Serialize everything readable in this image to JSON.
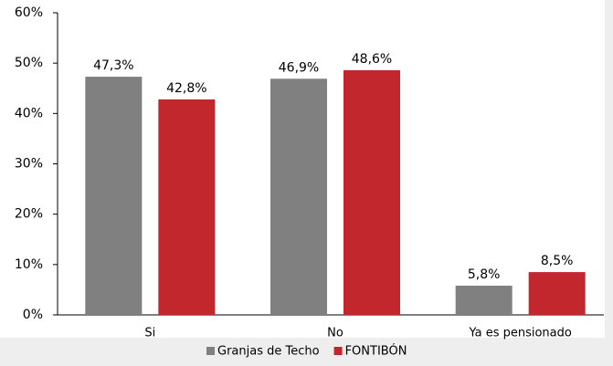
{
  "chart_data": {
    "type": "bar",
    "categories": [
      "Si",
      "No",
      "Ya es pensionado"
    ],
    "series": [
      {
        "name": "Granjas de Techo",
        "color": "#808080",
        "values": [
          47.3,
          46.9,
          5.8
        ],
        "value_labels": [
          "47,3%",
          "46,9%",
          "5,8%"
        ]
      },
      {
        "name": "FONTIBÓN",
        "color": "#c1272d",
        "values": [
          42.8,
          48.6,
          8.5
        ],
        "value_labels": [
          "42,8%",
          "48,6%",
          "8,5%"
        ]
      }
    ],
    "ylim": [
      0,
      60
    ],
    "yticks": [
      {
        "value": 0,
        "label": "0%"
      },
      {
        "value": 10,
        "label": "10%"
      },
      {
        "value": 20,
        "label": "20%"
      },
      {
        "value": 30,
        "label": "30%"
      },
      {
        "value": 40,
        "label": "40%"
      },
      {
        "value": 50,
        "label": "50%"
      },
      {
        "value": 60,
        "label": "60%"
      }
    ],
    "legend": "bottom"
  }
}
